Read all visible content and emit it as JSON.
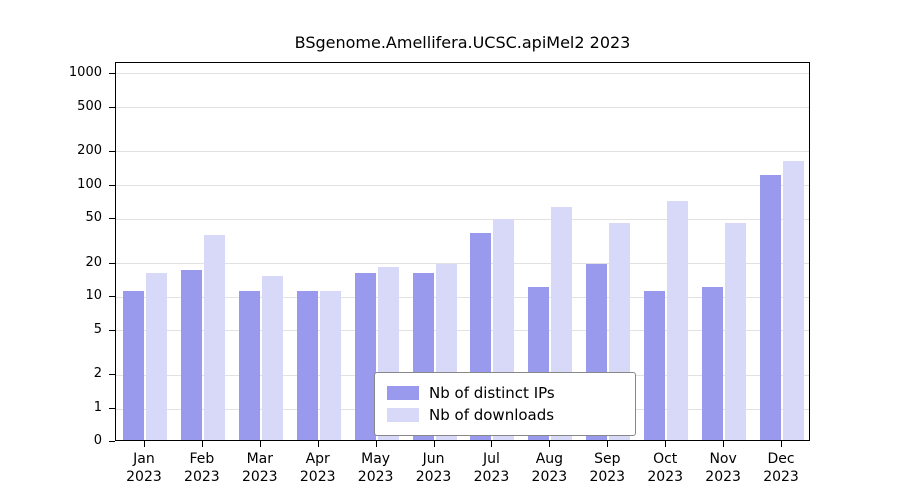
{
  "chart_data": {
    "type": "bar",
    "title": "BSgenome.Amellifera.UCSC.apiMel2 2023",
    "categories": [
      {
        "month": "Jan",
        "year": "2023"
      },
      {
        "month": "Feb",
        "year": "2023"
      },
      {
        "month": "Mar",
        "year": "2023"
      },
      {
        "month": "Apr",
        "year": "2023"
      },
      {
        "month": "May",
        "year": "2023"
      },
      {
        "month": "Jun",
        "year": "2023"
      },
      {
        "month": "Jul",
        "year": "2023"
      },
      {
        "month": "Aug",
        "year": "2023"
      },
      {
        "month": "Sep",
        "year": "2023"
      },
      {
        "month": "Oct",
        "year": "2023"
      },
      {
        "month": "Nov",
        "year": "2023"
      },
      {
        "month": "Dec",
        "year": "2023"
      }
    ],
    "series": [
      {
        "name": "Nb of distinct IPs",
        "color": "#9999ee",
        "values": [
          11,
          17,
          11,
          11,
          16,
          16,
          36,
          12,
          19,
          11,
          12,
          120
        ]
      },
      {
        "name": "Nb of downloads",
        "color": "#d8d8f8",
        "values": [
          16,
          35,
          15,
          11,
          18,
          19,
          48,
          62,
          44,
          70,
          44,
          160
        ]
      }
    ],
    "yticks": [
      0,
      1,
      2,
      5,
      10,
      20,
      50,
      100,
      200,
      500,
      1000
    ],
    "y_scale": "log",
    "ylim": [
      0,
      1000
    ],
    "xlabel": "",
    "ylabel": "",
    "grid": true,
    "legend_position": "bottom-center-inside",
    "colors": {
      "grid": "#e2e2e2",
      "axis": "#000000",
      "background": "#ffffff"
    }
  }
}
